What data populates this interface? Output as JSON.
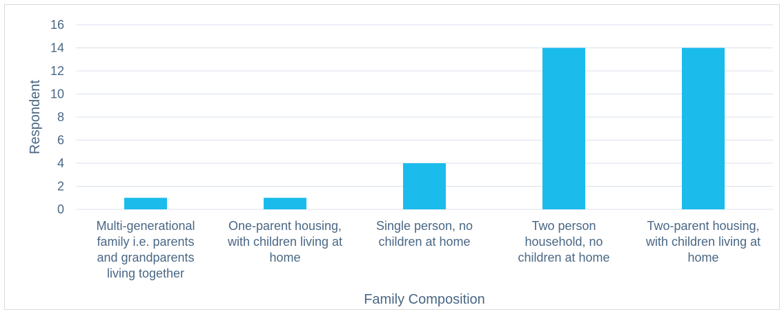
{
  "chart_data": {
    "type": "bar",
    "title": "",
    "xlabel": "Family Composition",
    "ylabel": "Respondent",
    "ylim": [
      0,
      16
    ],
    "yticks": [
      0,
      2,
      4,
      6,
      8,
      10,
      12,
      14,
      16
    ],
    "grid": true,
    "legend": "none",
    "categories": [
      [
        "Multi-generational",
        "family i.e. parents",
        "and grandparents",
        "living together"
      ],
      [
        "One-parent housing,",
        "with children living at",
        "home"
      ],
      [
        "Single person, no",
        "children at home"
      ],
      [
        "Two person",
        "household, no",
        "children at home"
      ],
      [
        "Two-parent housing,",
        "with children living at",
        "home"
      ]
    ],
    "values": [
      1,
      1,
      4,
      14,
      14
    ],
    "bar_color": "#1bbcec",
    "grid_color": "#d9e2ec",
    "text_color": "#4a6785"
  }
}
